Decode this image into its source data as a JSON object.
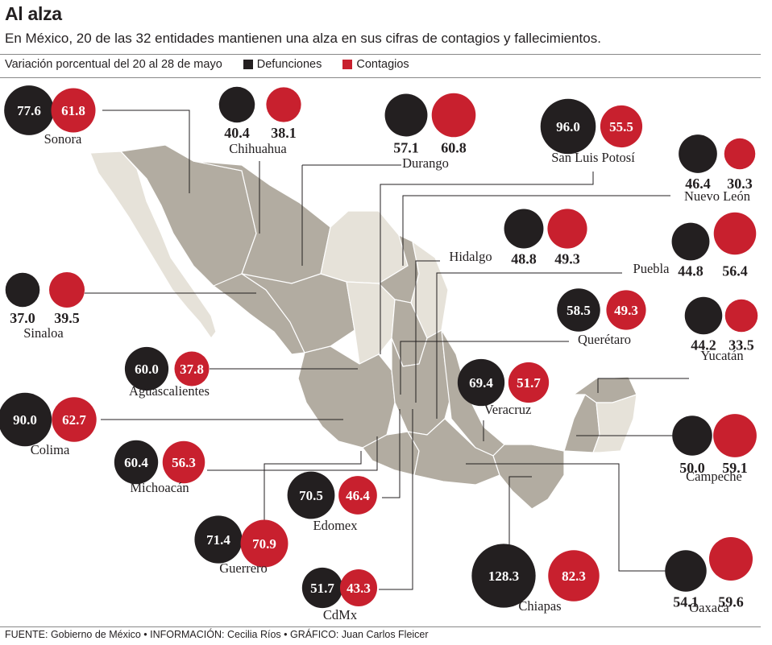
{
  "title": "Al alza",
  "subtitle": "En México, 20 de las 32 entidades mantienen una alza en sus cifras de contagios y fallecimientos.",
  "legend": {
    "period": "Variación porcentual del 20 al 28 de mayo",
    "deaths_label": "Defunciones",
    "cases_label": "Contagios"
  },
  "footer": "FUENTE: Gobierno de México • INFORMACIÓN: Cecilia Ríos • GRÁFICO: Juan Carlos Fleicer",
  "colors": {
    "deaths": "#231f20",
    "cases": "#c8202e",
    "map_highlight": "#b2aca1",
    "map_base": "#e6e2d9",
    "leader": "#231f20"
  },
  "chart_data": {
    "type": "bubble-map",
    "metric_units": "%",
    "series": [
      {
        "name": "Defunciones",
        "key": "deaths"
      },
      {
        "name": "Contagios",
        "key": "cases"
      }
    ],
    "states": [
      {
        "name": "Sonora",
        "deaths": 77.6,
        "cases": 61.8
      },
      {
        "name": "Chihuahua",
        "deaths": 40.4,
        "cases": 38.1
      },
      {
        "name": "Durango",
        "deaths": 57.1,
        "cases": 60.8
      },
      {
        "name": "San Luis Potosí",
        "deaths": 96.0,
        "cases": 55.5
      },
      {
        "name": "Nuevo León",
        "deaths": 46.4,
        "cases": 30.3
      },
      {
        "name": "Hidalgo",
        "deaths": 48.8,
        "cases": 49.3
      },
      {
        "name": "Puebla",
        "deaths": 44.8,
        "cases": 56.4
      },
      {
        "name": "Sinaloa",
        "deaths": 37.0,
        "cases": 39.5
      },
      {
        "name": "Querétaro",
        "deaths": 58.5,
        "cases": 49.3
      },
      {
        "name": "Yucatán",
        "deaths": 44.2,
        "cases": 33.5
      },
      {
        "name": "Aguascalientes",
        "deaths": 60.0,
        "cases": 37.8
      },
      {
        "name": "Veracruz",
        "deaths": 69.4,
        "cases": 51.7
      },
      {
        "name": "Colima",
        "deaths": 90.0,
        "cases": 62.7
      },
      {
        "name": "Campeche",
        "deaths": 50.0,
        "cases": 59.1
      },
      {
        "name": "Michoacán",
        "deaths": 60.4,
        "cases": 56.3
      },
      {
        "name": "Edomex",
        "deaths": 70.5,
        "cases": 46.4
      },
      {
        "name": "Guerrero",
        "deaths": 71.4,
        "cases": 70.9
      },
      {
        "name": "Chiapas",
        "deaths": 128.3,
        "cases": 82.3
      },
      {
        "name": "Oaxaca",
        "deaths": 54.1,
        "cases": 59.6
      },
      {
        "name": "CdMx",
        "deaths": 51.7,
        "cases": 43.3
      }
    ]
  }
}
